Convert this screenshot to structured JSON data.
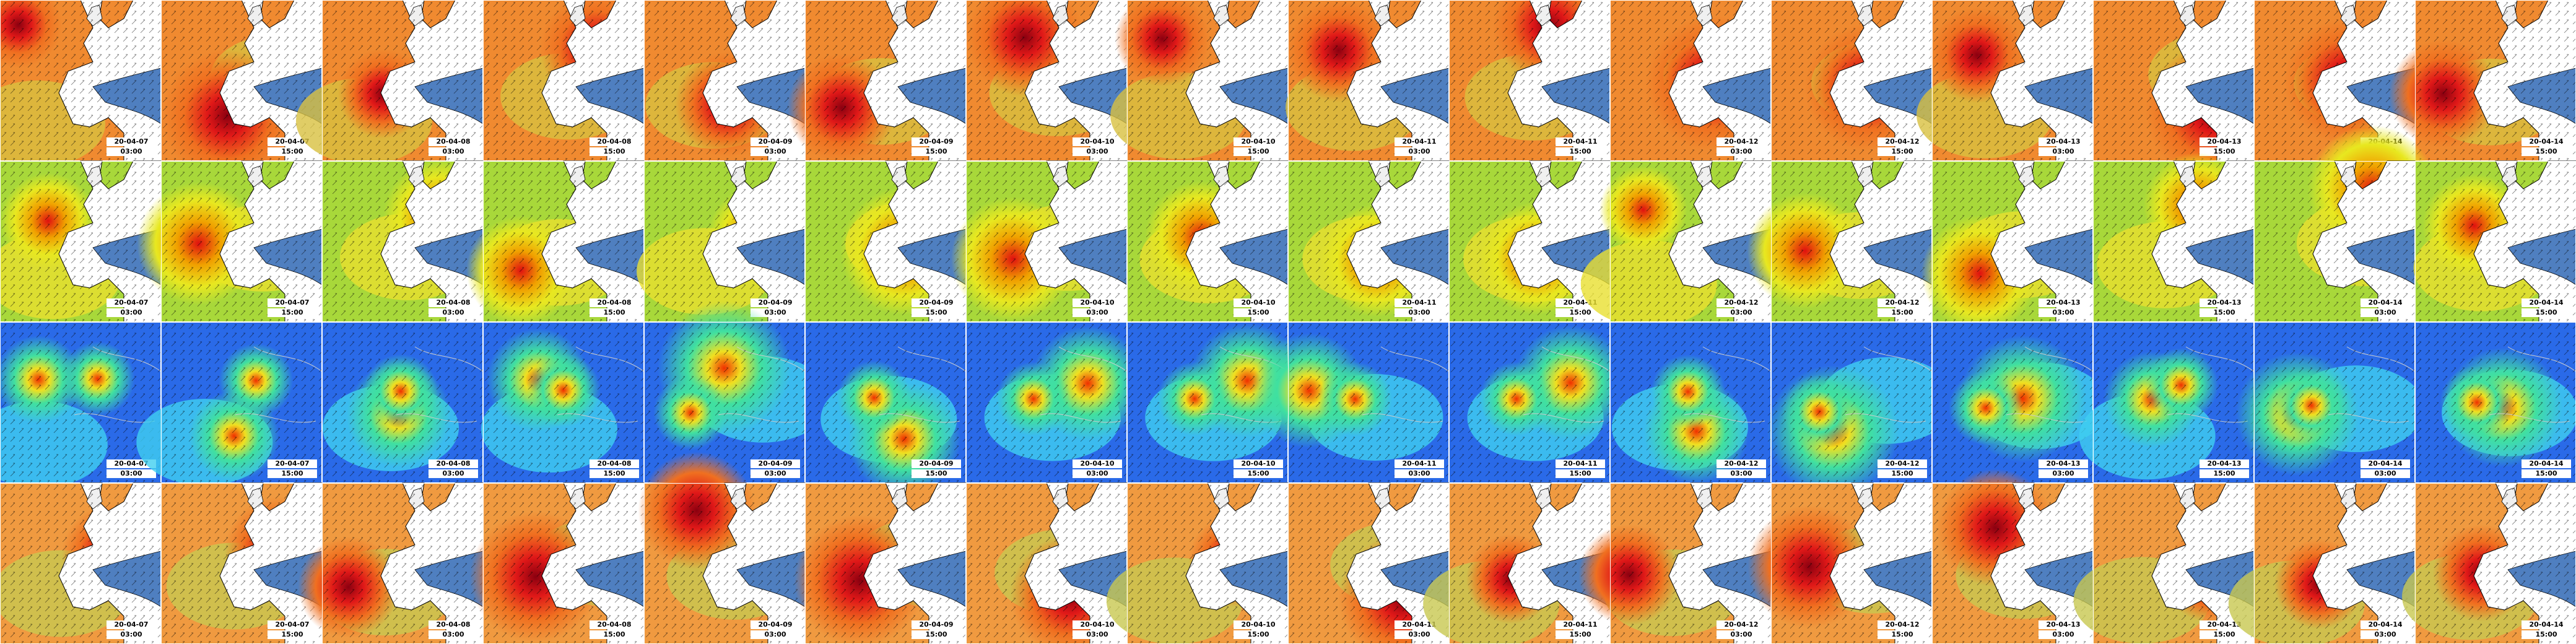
{
  "rows": [
    {
      "panels": [
        {
          "date": "20-04-07",
          "time": "03:00"
        },
        {
          "date": "20-04-07",
          "time": "15:00"
        },
        {
          "date": "20-04-08",
          "time": "03:00"
        },
        {
          "date": "20-04-08",
          "time": "15:00"
        },
        {
          "date": "20-04-09",
          "time": "03:00"
        },
        {
          "date": "20-04-09",
          "time": "15:00"
        },
        {
          "date": "20-04-10",
          "time": "03:00"
        },
        {
          "date": "20-04-10",
          "time": "15:00"
        },
        {
          "date": "20-04-11",
          "time": "03:00"
        },
        {
          "date": "20-04-11",
          "time": "15:00"
        },
        {
          "date": "20-04-12",
          "time": "03:00"
        },
        {
          "date": "20-04-12",
          "time": "15:00"
        },
        {
          "date": "20-04-13",
          "time": "03:00"
        },
        {
          "date": "20-04-13",
          "time": "15:00"
        },
        {
          "date": "20-04-14",
          "time": "03:00"
        },
        {
          "date": "20-04-14",
          "time": "15:00"
        }
      ]
    },
    {
      "panels": [
        {
          "date": "20-04-07",
          "time": "03:00"
        },
        {
          "date": "20-04-07",
          "time": "15:00"
        },
        {
          "date": "20-04-08",
          "time": "03:00"
        },
        {
          "date": "20-04-08",
          "time": "15:00"
        },
        {
          "date": "20-04-09",
          "time": "03:00"
        },
        {
          "date": "20-04-09",
          "time": "15:00"
        },
        {
          "date": "20-04-10",
          "time": "03:00"
        },
        {
          "date": "20-04-10",
          "time": "15:00"
        },
        {
          "date": "20-04-11",
          "time": "03:00"
        },
        {
          "date": "20-04-11",
          "time": "15:00"
        },
        {
          "date": "20-04-12",
          "time": "03:00"
        },
        {
          "date": "20-04-12",
          "time": "15:00"
        },
        {
          "date": "20-04-13",
          "time": "03:00"
        },
        {
          "date": "20-04-13",
          "time": "15:00"
        },
        {
          "date": "20-04-14",
          "time": "03:00"
        },
        {
          "date": "20-04-14",
          "time": "15:00"
        }
      ]
    },
    {
      "panels": [
        {
          "date": "20-04-07",
          "time": "03:00"
        },
        {
          "date": "20-04-07",
          "time": "15:00"
        },
        {
          "date": "20-04-08",
          "time": "03:00"
        },
        {
          "date": "20-04-08",
          "time": "15:00"
        },
        {
          "date": "20-04-09",
          "time": "03:00"
        },
        {
          "date": "20-04-09",
          "time": "15:00"
        },
        {
          "date": "20-04-10",
          "time": "03:00"
        },
        {
          "date": "20-04-10",
          "time": "15:00"
        },
        {
          "date": "20-04-11",
          "time": "03:00"
        },
        {
          "date": "20-04-11",
          "time": "15:00"
        },
        {
          "date": "20-04-12",
          "time": "03:00"
        },
        {
          "date": "20-04-12",
          "time": "15:00"
        },
        {
          "date": "20-04-13",
          "time": "03:00"
        },
        {
          "date": "20-04-13",
          "time": "15:00"
        },
        {
          "date": "20-04-14",
          "time": "03:00"
        },
        {
          "date": "20-04-14",
          "time": "15:00"
        }
      ]
    },
    {
      "panels": [
        {
          "date": "20-04-07",
          "time": "03:00"
        },
        {
          "date": "20-04-07",
          "time": "15:00"
        },
        {
          "date": "20-04-08",
          "time": "03:00"
        },
        {
          "date": "20-04-08",
          "time": "15:00"
        },
        {
          "date": "20-04-09",
          "time": "03:00"
        },
        {
          "date": "20-04-09",
          "time": "15:00"
        },
        {
          "date": "20-04-10",
          "time": "03:00"
        },
        {
          "date": "20-04-10",
          "time": "15:00"
        },
        {
          "date": "20-04-11",
          "time": "03:00"
        },
        {
          "date": "20-04-11",
          "time": "15:00"
        },
        {
          "date": "20-04-12",
          "time": "03:00"
        },
        {
          "date": "20-04-12",
          "time": "15:00"
        },
        {
          "date": "20-04-13",
          "time": "03:00"
        },
        {
          "date": "20-04-13",
          "time": "15:00"
        },
        {
          "date": "20-04-14",
          "time": "03:00"
        },
        {
          "date": "20-04-14",
          "time": "15:00"
        }
      ]
    }
  ]
}
